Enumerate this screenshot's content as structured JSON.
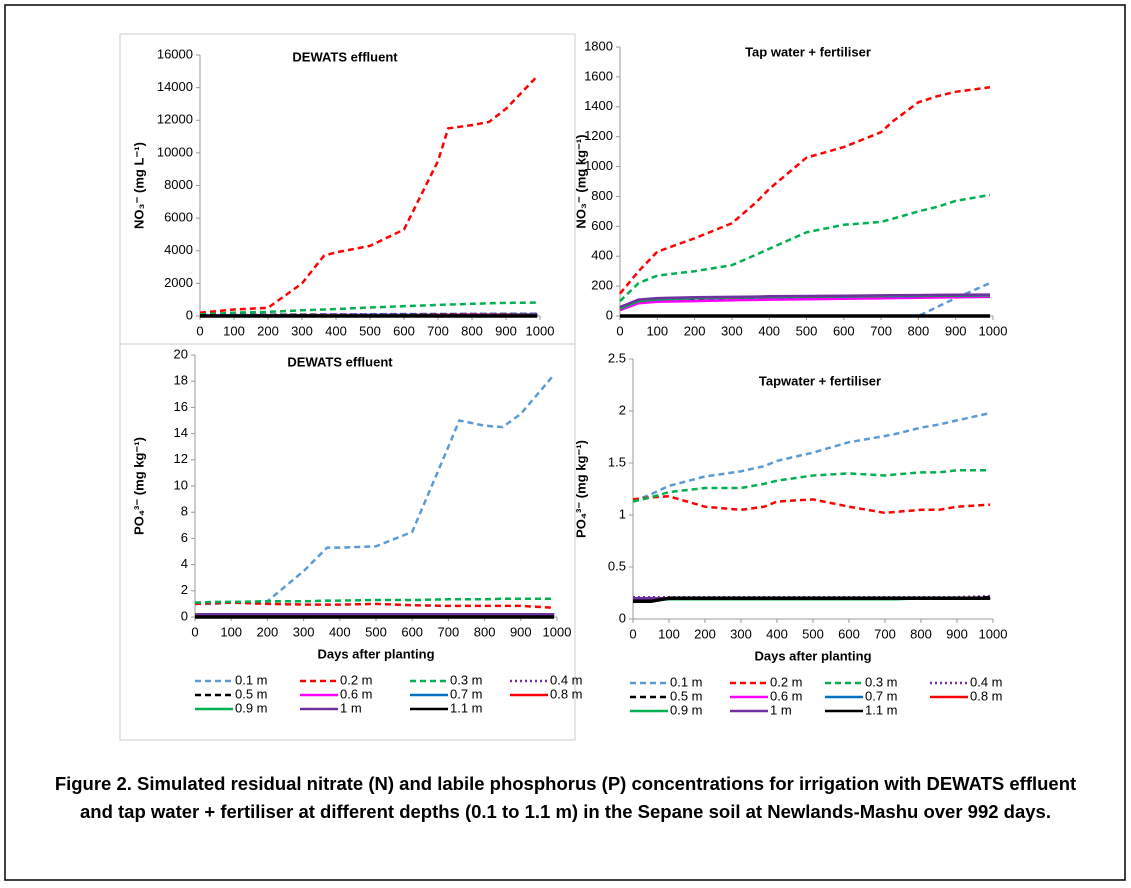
{
  "chart_data": [
    {
      "type": "line",
      "title": "DEWATS effluent",
      "ylabel": "NO₃⁻ (mg L⁻¹)",
      "x": [
        0,
        50,
        100,
        200,
        300,
        365,
        400,
        500,
        600,
        700,
        730,
        800,
        850,
        900,
        992
      ],
      "xlim": [
        0,
        1000
      ],
      "xticks": [
        0,
        100,
        200,
        300,
        400,
        500,
        600,
        700,
        800,
        900,
        1000
      ],
      "ylim": [
        0,
        16000
      ],
      "yticks": [
        0,
        2000,
        4000,
        6000,
        8000,
        10000,
        12000,
        14000,
        16000
      ],
      "series": [
        {
          "color": "#5b9bd5",
          "dash": "dash",
          "values": [
            50,
            60,
            70,
            80,
            90,
            100,
            100,
            110,
            120,
            130,
            130,
            140,
            140,
            150,
            150
          ]
        },
        {
          "color": "#ff0000",
          "dash": "dash",
          "values": [
            200,
            300,
            400,
            500,
            2000,
            3700,
            3900,
            4300,
            5300,
            9500,
            11500,
            11700,
            11900,
            12700,
            14700
          ]
        },
        {
          "color": "#00b050",
          "dash": "dash",
          "values": [
            100,
            150,
            200,
            250,
            350,
            400,
            430,
            520,
            600,
            680,
            700,
            750,
            780,
            800,
            820
          ]
        },
        {
          "color": "#7030a0",
          "dash": "dot",
          "values": [
            40,
            50,
            60,
            70,
            80,
            80,
            90,
            100,
            100,
            110,
            110,
            120,
            120,
            120,
            130
          ]
        },
        {
          "color": "#000000",
          "dash": "dash",
          "values": [
            30,
            40,
            50,
            60,
            60,
            70,
            70,
            80,
            90,
            90,
            100,
            100,
            100,
            110,
            110
          ]
        },
        {
          "color": "#ff00ff",
          "dash": "solid",
          "values": [
            20,
            30,
            40,
            50,
            50,
            60,
            60,
            70,
            70,
            80,
            80,
            90,
            90,
            90,
            100
          ]
        },
        {
          "color": "#0070c0",
          "dash": "solid",
          "values": [
            10,
            20,
            30,
            40,
            40,
            50,
            50,
            60,
            60,
            70,
            70,
            80,
            80,
            80,
            90
          ]
        },
        {
          "color": "#ff0000",
          "dash": "solid",
          "values": [
            10,
            10,
            20,
            30,
            30,
            40,
            40,
            50,
            50,
            60,
            60,
            60,
            70,
            70,
            70
          ]
        },
        {
          "color": "#00b050",
          "dash": "solid",
          "values": [
            0,
            10,
            10,
            20,
            20,
            30,
            30,
            40,
            40,
            50,
            50,
            50,
            60,
            60,
            60
          ]
        },
        {
          "color": "#7030a0",
          "dash": "solid",
          "values": [
            0,
            0,
            10,
            10,
            20,
            20,
            20,
            30,
            30,
            40,
            40,
            40,
            50,
            50,
            50
          ]
        },
        {
          "color": "#000000",
          "dash": "solid",
          "values": [
            0,
            0,
            0,
            0,
            0,
            0,
            0,
            0,
            0,
            0,
            0,
            0,
            0,
            0,
            0
          ]
        }
      ]
    },
    {
      "type": "line",
      "title": "Tap water + fertiliser",
      "ylabel": "NO₃⁻ (mg kg⁻¹)",
      "x": [
        0,
        50,
        100,
        200,
        300,
        365,
        400,
        500,
        600,
        700,
        730,
        800,
        850,
        900,
        992
      ],
      "xlim": [
        0,
        1000
      ],
      "xticks": [
        0,
        100,
        200,
        300,
        400,
        500,
        600,
        700,
        800,
        900,
        1000
      ],
      "ylim": [
        0,
        1800
      ],
      "yticks": [
        0,
        200,
        400,
        600,
        800,
        1000,
        1200,
        1400,
        1600,
        1800
      ],
      "series": [
        {
          "color": "#5b9bd5",
          "dash": "dash",
          "values": [
            0,
            0,
            0,
            0,
            0,
            0,
            0,
            0,
            0,
            0,
            0,
            0,
            60,
            120,
            220
          ]
        },
        {
          "color": "#ff0000",
          "dash": "dash",
          "values": [
            150,
            300,
            430,
            520,
            620,
            760,
            850,
            1060,
            1130,
            1230,
            1300,
            1430,
            1470,
            1500,
            1530
          ]
        },
        {
          "color": "#00b050",
          "dash": "dash",
          "values": [
            100,
            220,
            270,
            300,
            340,
            410,
            450,
            560,
            610,
            630,
            650,
            700,
            730,
            770,
            810
          ]
        },
        {
          "color": "#7030a0",
          "dash": "dot",
          "values": [
            50,
            100,
            110,
            120,
            125,
            125,
            128,
            130,
            132,
            134,
            135,
            136,
            137,
            138,
            140
          ]
        },
        {
          "color": "#000000",
          "dash": "dash",
          "values": [
            40,
            90,
            100,
            105,
            110,
            112,
            115,
            118,
            120,
            122,
            124,
            125,
            126,
            128,
            130
          ]
        },
        {
          "color": "#ff00ff",
          "dash": "solid",
          "values": [
            40,
            85,
            95,
            100,
            105,
            108,
            110,
            112,
            115,
            118,
            120,
            122,
            124,
            126,
            128
          ]
        },
        {
          "color": "#0070c0",
          "dash": "solid",
          "values": [
            50,
            100,
            110,
            118,
            122,
            124,
            126,
            128,
            130,
            132,
            133,
            134,
            135,
            136,
            138
          ]
        },
        {
          "color": "#ff0000",
          "dash": "solid",
          "values": [
            50,
            100,
            112,
            120,
            124,
            126,
            128,
            130,
            132,
            134,
            135,
            136,
            137,
            138,
            139
          ]
        },
        {
          "color": "#00b050",
          "dash": "solid",
          "values": [
            50,
            100,
            112,
            120,
            124,
            126,
            128,
            130,
            132,
            134,
            135,
            136,
            137,
            138,
            139
          ]
        },
        {
          "color": "#7030a0",
          "dash": "solid",
          "values": [
            60,
            110,
            120,
            125,
            128,
            130,
            132,
            134,
            136,
            138,
            139,
            140,
            141,
            142,
            143
          ]
        },
        {
          "color": "#000000",
          "dash": "solid",
          "values": [
            0,
            0,
            0,
            0,
            0,
            0,
            0,
            0,
            0,
            0,
            0,
            0,
            0,
            0,
            0
          ]
        }
      ]
    },
    {
      "type": "line",
      "title": "DEWATS effluent",
      "ylabel": "PO₄³⁻ (mg kg⁻¹)",
      "xlabel": "Days after planting",
      "legend": "bottom",
      "x": [
        0,
        50,
        100,
        200,
        300,
        365,
        400,
        500,
        600,
        700,
        730,
        800,
        850,
        900,
        992
      ],
      "xlim": [
        0,
        1000
      ],
      "xticks": [
        0,
        100,
        200,
        300,
        400,
        500,
        600,
        700,
        800,
        900,
        1000
      ],
      "ylim": [
        0,
        20
      ],
      "yticks": [
        0,
        2,
        4,
        6,
        8,
        10,
        12,
        14,
        16,
        18,
        20
      ],
      "series": [
        {
          "name": "0.1 m",
          "color": "#5b9bd5",
          "dash": "dash",
          "values": [
            1,
            1,
            1.1,
            1.2,
            3.5,
            5.3,
            5.3,
            5.4,
            6.5,
            13,
            15,
            14.6,
            14.5,
            15.5,
            18.5
          ]
        },
        {
          "name": "0.2 m",
          "color": "#ff0000",
          "dash": "dash",
          "values": [
            1,
            1.05,
            1.1,
            1,
            0.95,
            0.95,
            0.95,
            1,
            0.9,
            0.85,
            0.85,
            0.85,
            0.85,
            0.85,
            0.7
          ]
        },
        {
          "name": "0.3 m",
          "color": "#00b050",
          "dash": "dash",
          "values": [
            1.1,
            1.15,
            1.15,
            1.2,
            1.2,
            1.25,
            1.25,
            1.3,
            1.3,
            1.35,
            1.35,
            1.35,
            1.4,
            1.4,
            1.4
          ]
        },
        {
          "name": "0.4 m",
          "color": "#7030a0",
          "dash": "dot",
          "values": [
            0.2,
            0.2,
            0.2,
            0.2,
            0.2,
            0.2,
            0.2,
            0.2,
            0.2,
            0.2,
            0.2,
            0.2,
            0.2,
            0.2,
            0.2
          ]
        },
        {
          "name": "0.5 m",
          "color": "#000000",
          "dash": "dash",
          "values": [
            0.2,
            0.2,
            0.2,
            0.2,
            0.2,
            0.2,
            0.2,
            0.2,
            0.2,
            0.2,
            0.2,
            0.2,
            0.2,
            0.2,
            0.2
          ]
        },
        {
          "name": "0.6 m",
          "color": "#ff00ff",
          "dash": "solid",
          "values": [
            0.2,
            0.2,
            0.2,
            0.2,
            0.2,
            0.2,
            0.2,
            0.2,
            0.2,
            0.2,
            0.2,
            0.2,
            0.2,
            0.2,
            0.2
          ]
        },
        {
          "name": "0.7 m",
          "color": "#0070c0",
          "dash": "solid",
          "values": [
            0.2,
            0.2,
            0.2,
            0.2,
            0.2,
            0.2,
            0.2,
            0.2,
            0.2,
            0.2,
            0.2,
            0.2,
            0.2,
            0.2,
            0.2
          ]
        },
        {
          "name": "0.8 m",
          "color": "#ff0000",
          "dash": "solid",
          "values": [
            0.2,
            0.2,
            0.2,
            0.2,
            0.2,
            0.2,
            0.2,
            0.2,
            0.2,
            0.2,
            0.2,
            0.2,
            0.2,
            0.2,
            0.2
          ]
        },
        {
          "name": "0.9 m",
          "color": "#00b050",
          "dash": "solid",
          "values": [
            0.2,
            0.2,
            0.2,
            0.2,
            0.2,
            0.2,
            0.2,
            0.2,
            0.2,
            0.2,
            0.2,
            0.2,
            0.2,
            0.2,
            0.2
          ]
        },
        {
          "name": "1 m",
          "color": "#7030a0",
          "dash": "solid",
          "values": [
            0.2,
            0.2,
            0.2,
            0.2,
            0.2,
            0.2,
            0.2,
            0.2,
            0.2,
            0.2,
            0.2,
            0.2,
            0.2,
            0.2,
            0.2
          ]
        },
        {
          "name": "1.1 m",
          "color": "#000000",
          "dash": "solid",
          "values": [
            0,
            0,
            0,
            0,
            0,
            0,
            0,
            0,
            0,
            0,
            0,
            0,
            0,
            0,
            0
          ]
        }
      ]
    },
    {
      "type": "line",
      "title": "Tapwater + fertiliser",
      "ylabel": "PO₄³⁻ (mg kg⁻¹)",
      "xlabel": "Days after planting",
      "legend": "bottom",
      "x": [
        0,
        50,
        100,
        200,
        300,
        365,
        400,
        500,
        600,
        700,
        730,
        800,
        850,
        900,
        992
      ],
      "xlim": [
        0,
        1000
      ],
      "xticks": [
        0,
        100,
        200,
        300,
        400,
        500,
        600,
        700,
        800,
        900,
        1000
      ],
      "ylim": [
        0,
        2.5
      ],
      "yticks": [
        0,
        0.5,
        1,
        1.5,
        2,
        2.5
      ],
      "series": [
        {
          "name": "0.1 m",
          "color": "#5b9bd5",
          "dash": "dash",
          "values": [
            1.13,
            1.2,
            1.28,
            1.37,
            1.42,
            1.47,
            1.52,
            1.6,
            1.7,
            1.76,
            1.78,
            1.84,
            1.87,
            1.91,
            1.98
          ]
        },
        {
          "name": "0.2 m",
          "color": "#ff0000",
          "dash": "dash",
          "values": [
            1.15,
            1.17,
            1.18,
            1.08,
            1.05,
            1.08,
            1.13,
            1.15,
            1.08,
            1.02,
            1.03,
            1.05,
            1.05,
            1.08,
            1.1
          ]
        },
        {
          "name": "0.3 m",
          "color": "#00b050",
          "dash": "dash",
          "values": [
            1.13,
            1.17,
            1.22,
            1.26,
            1.26,
            1.3,
            1.33,
            1.38,
            1.4,
            1.38,
            1.39,
            1.41,
            1.41,
            1.43,
            1.43
          ]
        },
        {
          "name": "0.4 m",
          "color": "#7030a0",
          "dash": "dot",
          "values": [
            0.21,
            0.21,
            0.21,
            0.21,
            0.21,
            0.21,
            0.21,
            0.21,
            0.21,
            0.21,
            0.21,
            0.21,
            0.21,
            0.21,
            0.22
          ]
        },
        {
          "name": "0.5 m",
          "color": "#000000",
          "dash": "dash",
          "values": [
            0.2,
            0.2,
            0.2,
            0.2,
            0.2,
            0.2,
            0.2,
            0.2,
            0.2,
            0.2,
            0.2,
            0.2,
            0.2,
            0.2,
            0.21
          ]
        },
        {
          "name": "0.6 m",
          "color": "#ff00ff",
          "dash": "solid",
          "values": [
            0.2,
            0.2,
            0.2,
            0.2,
            0.2,
            0.2,
            0.2,
            0.2,
            0.2,
            0.2,
            0.2,
            0.2,
            0.2,
            0.2,
            0.2
          ]
        },
        {
          "name": "0.7 m",
          "color": "#0070c0",
          "dash": "solid",
          "values": [
            0.2,
            0.2,
            0.2,
            0.2,
            0.2,
            0.2,
            0.2,
            0.2,
            0.2,
            0.2,
            0.2,
            0.2,
            0.2,
            0.2,
            0.2
          ]
        },
        {
          "name": "0.8 m",
          "color": "#ff0000",
          "dash": "solid",
          "values": [
            0.2,
            0.2,
            0.2,
            0.2,
            0.2,
            0.2,
            0.2,
            0.2,
            0.2,
            0.2,
            0.2,
            0.2,
            0.2,
            0.2,
            0.2
          ]
        },
        {
          "name": "0.9 m",
          "color": "#00b050",
          "dash": "solid",
          "values": [
            0.18,
            0.18,
            0.19,
            0.19,
            0.19,
            0.19,
            0.19,
            0.19,
            0.19,
            0.19,
            0.19,
            0.2,
            0.2,
            0.2,
            0.2
          ]
        },
        {
          "name": "1 m",
          "color": "#7030a0",
          "dash": "solid",
          "values": [
            0.2,
            0.2,
            0.2,
            0.2,
            0.2,
            0.2,
            0.2,
            0.2,
            0.2,
            0.2,
            0.2,
            0.2,
            0.2,
            0.2,
            0.2
          ]
        },
        {
          "name": "1.1 m",
          "color": "#000000",
          "dash": "solid",
          "values": [
            0.17,
            0.17,
            0.2,
            0.2,
            0.2,
            0.2,
            0.2,
            0.2,
            0.2,
            0.2,
            0.2,
            0.2,
            0.2,
            0.2,
            0.2
          ]
        }
      ]
    }
  ],
  "caption": "Figure 2. Simulated residual nitrate (N) and labile phosphorus (P) concentrations for irrigation with DEWATS effluent and tap water + fertiliser at different depths (0.1 to 1.1 m) in the Sepane soil at Newlands-Mashu over 992 days."
}
